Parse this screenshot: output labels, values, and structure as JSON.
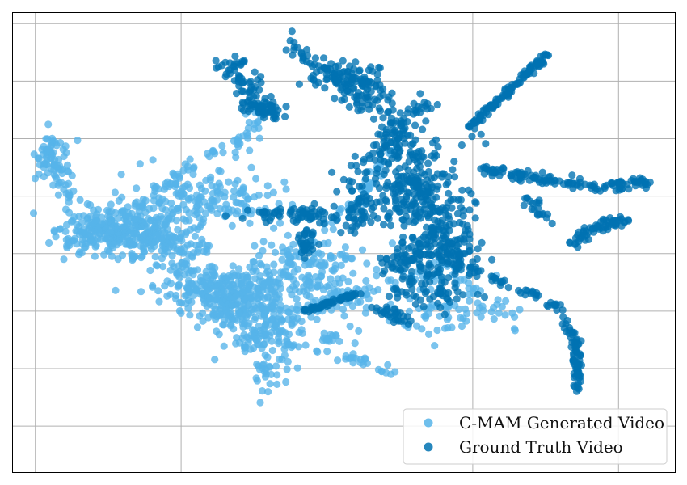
{
  "chart_data": {
    "type": "scatter",
    "title": "",
    "xlabel": "",
    "ylabel": "",
    "xlim": [
      -1.0,
      1.0
    ],
    "ylim": [
      -1.0,
      1.0
    ],
    "grid": true,
    "tick_labels_visible": false,
    "legend_position": "bottom-right",
    "series": [
      {
        "name": "C-MAM Generated Video",
        "color": "#56b4e9",
        "clusters": [
          {
            "center": [
              -0.7,
              0.03
            ],
            "spread": [
              0.08,
              0.05
            ],
            "count": 210
          },
          {
            "center": [
              -0.55,
              0.06
            ],
            "spread": [
              0.07,
              0.09
            ],
            "count": 190
          },
          {
            "center": [
              -0.38,
              -0.22
            ],
            "spread": [
              0.09,
              0.06
            ],
            "count": 200
          },
          {
            "center": [
              -0.25,
              -0.33
            ],
            "spread": [
              0.06,
              0.09
            ],
            "count": 160
          },
          {
            "center": [
              -0.1,
              -0.14
            ],
            "spread": [
              0.1,
              0.08
            ],
            "count": 150
          },
          {
            "center": [
              -0.35,
              0.2
            ],
            "spread": [
              0.09,
              0.06
            ],
            "count": 110
          },
          {
            "center": [
              -0.88,
              0.38
            ],
            "spread": [
              0.025,
              0.07
            ],
            "count": 45
          },
          {
            "center": [
              0.3,
              -0.32
            ],
            "spread": [
              0.09,
              0.05
            ],
            "count": 55
          }
        ],
        "paths": [
          {
            "points": [
              [
                -0.92,
                0.42
              ],
              [
                -0.85,
                0.25
              ],
              [
                -0.72,
                0.08
              ],
              [
                -0.55,
                0.0
              ],
              [
                -0.4,
                -0.22
              ],
              [
                -0.25,
                -0.4
              ],
              [
                -0.22,
                -0.68
              ]
            ],
            "count": 160,
            "jitter": 0.025
          },
          {
            "points": [
              [
                -0.72,
                0.08
              ],
              [
                -0.48,
                0.3
              ],
              [
                -0.28,
                0.48
              ],
              [
                -0.25,
                0.62
              ]
            ],
            "count": 70,
            "jitter": 0.02
          },
          {
            "points": [
              [
                -0.25,
                -0.2
              ],
              [
                0.05,
                0.18
              ],
              [
                0.14,
                0.42
              ]
            ],
            "count": 70,
            "jitter": 0.012
          },
          {
            "points": [
              [
                -0.2,
                -0.35
              ],
              [
                0.1,
                -0.2
              ],
              [
                0.3,
                -0.1
              ],
              [
                0.5,
                -0.32
              ]
            ],
            "count": 90,
            "jitter": 0.03
          },
          {
            "points": [
              [
                0.0,
                -0.48
              ],
              [
                0.15,
                -0.58
              ]
            ],
            "count": 22,
            "jitter": 0.015
          },
          {
            "points": [
              [
                -0.4,
                -0.3
              ],
              [
                -0.1,
                -0.45
              ],
              [
                0.05,
                -0.4
              ]
            ],
            "count": 50,
            "jitter": 0.03
          }
        ]
      },
      {
        "name": "Ground Truth Video",
        "color": "#0072b2",
        "clusters": [
          {
            "center": [
              0.22,
              0.22
            ],
            "spread": [
              0.09,
              0.1
            ],
            "count": 220
          },
          {
            "center": [
              0.28,
              -0.05
            ],
            "spread": [
              0.06,
              0.09
            ],
            "count": 150
          },
          {
            "center": [
              0.02,
              0.7
            ],
            "spread": [
              0.06,
              0.05
            ],
            "count": 90
          },
          {
            "center": [
              -0.15,
              0.12
            ],
            "spread": [
              0.08,
              0.02
            ],
            "count": 70
          },
          {
            "center": [
              0.05,
              0.15
            ],
            "spread": [
              0.03,
              0.06
            ],
            "count": 40
          },
          {
            "center": [
              0.25,
              -0.22
            ],
            "spread": [
              0.06,
              0.04
            ],
            "count": 40
          }
        ],
        "paths": [
          {
            "points": [
              [
                -0.15,
                0.88
              ],
              [
                -0.05,
                0.75
              ],
              [
                0.02,
                0.7
              ],
              [
                0.15,
                0.55
              ],
              [
                0.2,
                0.35
              ],
              [
                0.28,
                0.05
              ],
              [
                0.35,
                -0.1
              ]
            ],
            "count": 200,
            "jitter": 0.03
          },
          {
            "points": [
              [
                -0.35,
                0.8
              ],
              [
                -0.28,
                0.65
              ],
              [
                -0.22,
                0.55
              ]
            ],
            "count": 80,
            "jitter": 0.02
          },
          {
            "points": [
              [
                0.1,
                0.4
              ],
              [
                0.26,
                0.62
              ]
            ],
            "count": 50,
            "jitter": 0.025
          },
          {
            "points": [
              [
                0.38,
                0.5
              ],
              [
                0.62,
                0.82
              ]
            ],
            "count": 110,
            "jitter": 0.006
          },
          {
            "points": [
              [
                0.42,
                0.32
              ],
              [
                0.58,
                0.28
              ],
              [
                0.78,
                0.24
              ],
              [
                0.92,
                0.26
              ]
            ],
            "count": 130,
            "jitter": 0.012
          },
          {
            "points": [
              [
                0.55,
                0.2
              ],
              [
                0.62,
                0.08
              ]
            ],
            "count": 20,
            "jitter": 0.01
          },
          {
            "points": [
              [
                0.68,
                -0.02
              ],
              [
                0.75,
                0.06
              ],
              [
                0.85,
                0.1
              ]
            ],
            "count": 60,
            "jitter": 0.012
          },
          {
            "points": [
              [
                0.38,
                -0.12
              ],
              [
                0.5,
                -0.18
              ],
              [
                0.65,
                -0.28
              ],
              [
                0.7,
                -0.42
              ],
              [
                0.71,
                -0.65
              ]
            ],
            "count": 110,
            "jitter": 0.008
          },
          {
            "points": [
              [
                -0.12,
                -0.3
              ],
              [
                0.05,
                -0.22
              ]
            ],
            "count": 60,
            "jitter": 0.006
          },
          {
            "points": [
              [
                -0.12,
                -0.05
              ],
              [
                -0.1,
                0.05
              ]
            ],
            "count": 30,
            "jitter": 0.015
          },
          {
            "points": [
              [
                0.1,
                -0.1
              ],
              [
                0.25,
                -0.08
              ]
            ],
            "count": 30,
            "jitter": 0.02
          },
          {
            "points": [
              [
                0.1,
                -0.28
              ],
              [
                0.2,
                -0.35
              ]
            ],
            "count": 30,
            "jitter": 0.015
          },
          {
            "points": [
              [
                -0.28,
                0.6
              ],
              [
                -0.2,
                0.55
              ]
            ],
            "count": 30,
            "jitter": 0.02
          }
        ]
      }
    ]
  },
  "legend": {
    "items": [
      {
        "label": "C-MAM Generated Video",
        "color": "#56b4e9"
      },
      {
        "label": "Ground Truth Video",
        "color": "#0072b2"
      }
    ]
  }
}
